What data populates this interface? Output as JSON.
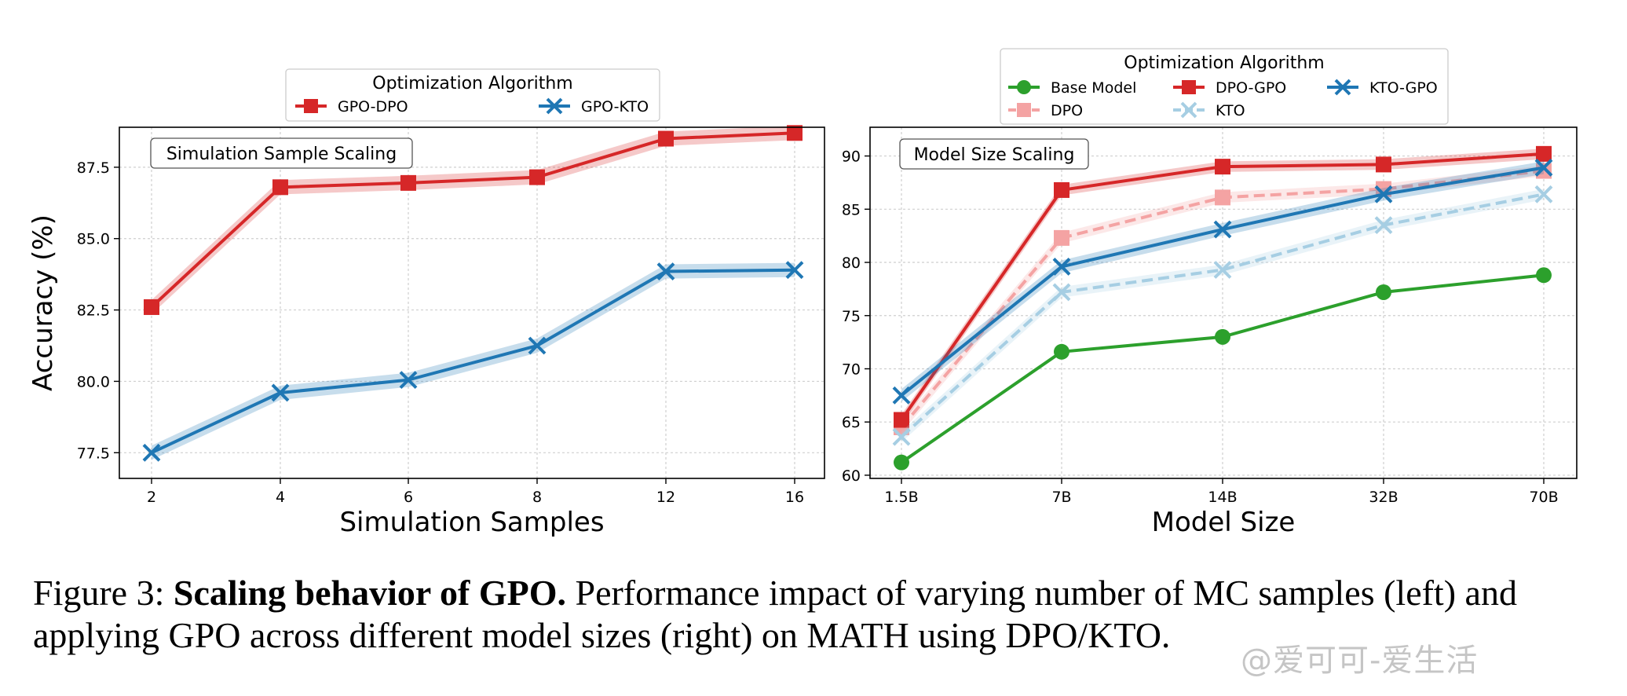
{
  "chart_data": [
    {
      "type": "line",
      "inset_title": "Simulation Sample Scaling",
      "xlabel": "Simulation Samples",
      "ylabel": "Accuracy (%)",
      "categories": [
        "2",
        "4",
        "6",
        "8",
        "12",
        "16"
      ],
      "ylim": [
        76.6,
        88.9
      ],
      "yticks": [
        "77.5",
        "80.0",
        "82.5",
        "85.0",
        "87.5"
      ],
      "ytick_values": [
        77.5,
        80.0,
        82.5,
        85.0,
        87.5
      ],
      "grid": true,
      "legend": {
        "title": "Optimization Algorithm",
        "placement": "top-center, outside"
      },
      "series": [
        {
          "name": "GPO-DPO",
          "values": [
            82.6,
            86.8,
            86.95,
            87.15,
            88.5,
            88.7
          ],
          "band": 0.25,
          "color": "#d62728",
          "marker": "square",
          "dash": false
        },
        {
          "name": "GPO-KTO",
          "values": [
            77.5,
            79.6,
            80.05,
            81.25,
            83.85,
            83.9
          ],
          "band": 0.25,
          "color": "#1f77b4",
          "marker": "x",
          "dash": false
        }
      ]
    },
    {
      "type": "line",
      "inset_title": "Model Size Scaling",
      "xlabel": "Model Size",
      "ylabel": "",
      "categories": [
        "1.5B",
        "7B",
        "14B",
        "32B",
        "70B"
      ],
      "ylim": [
        59.7,
        92.7
      ],
      "yticks": [
        "60",
        "65",
        "70",
        "75",
        "80",
        "85",
        "90"
      ],
      "ytick_values": [
        60,
        65,
        70,
        75,
        80,
        85,
        90
      ],
      "grid": true,
      "legend": {
        "title": "Optimization Algorithm",
        "placement": "top-center, outside"
      },
      "series": [
        {
          "name": "Base Model",
          "values": [
            61.2,
            71.6,
            73.0,
            77.2,
            78.8
          ],
          "band": 0,
          "color": "#2ca02c",
          "marker": "circle",
          "dash": false
        },
        {
          "name": "DPO",
          "values": [
            64.5,
            82.3,
            86.1,
            86.9,
            88.6
          ],
          "band": 0.5,
          "color": "#f4a3a3",
          "marker": "square",
          "dash": true
        },
        {
          "name": "DPO-GPO",
          "values": [
            65.2,
            86.8,
            89.0,
            89.2,
            90.2
          ],
          "band": 0.5,
          "color": "#d62728",
          "marker": "square",
          "dash": false
        },
        {
          "name": "KTO",
          "values": [
            63.6,
            77.2,
            79.3,
            83.5,
            86.4
          ],
          "band": 0.5,
          "color": "#a6cee3",
          "marker": "x",
          "dash": true
        },
        {
          "name": "KTO-GPO",
          "values": [
            67.5,
            79.6,
            83.1,
            86.4,
            88.9
          ],
          "band": 0.6,
          "color": "#1f77b4",
          "marker": "x",
          "dash": false
        }
      ]
    }
  ],
  "caption": {
    "label": "Figure 3: ",
    "bold": "Scaling behavior of ",
    "name": "GPO.",
    "text": " Performance impact of varying number of MC samples (left) and applying GPO across different model sizes (right) on MATH using DPO/KTO."
  },
  "watermark": "@爱可可-爱生活"
}
